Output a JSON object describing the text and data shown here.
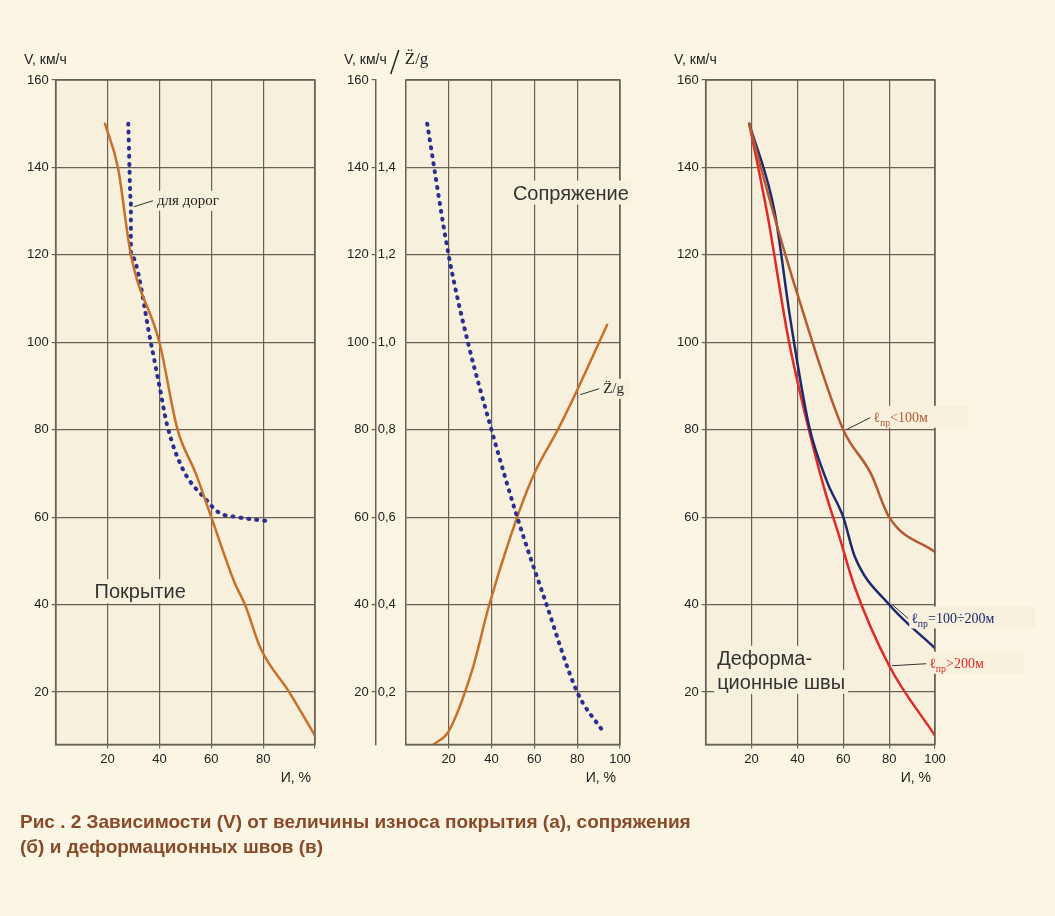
{
  "chart_data": [
    {
      "type": "line",
      "xlabel": "И, %",
      "ylabel": "V, км/ч",
      "xlim": [
        0,
        100
      ],
      "ylim": [
        8,
        160
      ],
      "xticks": [
        20,
        40,
        60,
        80,
        {
          "value": 100,
          "label": null
        }
      ],
      "yticks": [
        20,
        40,
        60,
        80,
        100,
        120,
        140,
        160
      ],
      "grid": true,
      "annotations": [
        {
          "text": "для дорог",
          "x": 29,
          "y": 131
        },
        "Покрытие"
      ],
      "series": [
        {
          "color": "#c8702a",
          "line_style": "solid",
          "x": [
            19,
            24,
            29,
            40,
            47,
            54,
            60,
            69,
            73,
            79,
            90,
            100
          ],
          "values": [
            150,
            140,
            120,
            100,
            80,
            70,
            60,
            45,
            40,
            30,
            20,
            10
          ]
        },
        {
          "color": "#2b2f8f",
          "line_style": "dotted",
          "x": [
            28,
            29,
            29,
            37,
            40,
            43,
            49,
            58,
            63,
            70,
            83
          ],
          "values": [
            150,
            132,
            120,
            99,
            90,
            81,
            71,
            64,
            61,
            60,
            59
          ]
        }
      ]
    },
    {
      "type": "line",
      "xlabel": "И, %",
      "ylabel": "V, км/ч",
      "y2label": "Z̈/g",
      "xlim": [
        0,
        100
      ],
      "ylim": [
        8,
        160
      ],
      "y2lim": [
        0.08,
        1.6
      ],
      "xticks": [
        20,
        40,
        60,
        80,
        100
      ],
      "yticks": [
        20,
        40,
        60,
        80,
        100,
        120,
        140,
        160
      ],
      "y2ticks": [
        {
          "value": 0.2,
          "label": "0,2"
        },
        {
          "value": 0.4,
          "label": "0,4"
        },
        {
          "value": 0.6,
          "label": "0,6"
        },
        {
          "value": 0.8,
          "label": "0,8"
        },
        {
          "value": 1.0,
          "label": "1,0"
        },
        {
          "value": 1.2,
          "label": "1,2"
        },
        {
          "value": 1.4,
          "label": "1,4"
        }
      ],
      "grid": true,
      "annotations": [
        {
          "text": "Z̈/g",
          "x": 80,
          "y": 88
        },
        "Сопряжение"
      ],
      "series": [
        {
          "color": "#2b2f8f",
          "line_style": "dotted",
          "x": [
            10,
            20,
            29,
            40,
            52,
            65,
            80,
            92
          ],
          "values": [
            150,
            120,
            100,
            80,
            60,
            41,
            20,
            11
          ]
        },
        {
          "color": "#c8702a",
          "line_style": "solid",
          "axis": "y2",
          "x": [
            13,
            20,
            31,
            39,
            52,
            60,
            71,
            79,
            94
          ],
          "values": [
            0.08,
            0.11,
            0.25,
            0.4,
            0.6,
            0.7,
            0.8,
            0.88,
            1.04
          ]
        }
      ]
    },
    {
      "type": "line",
      "xlabel": "И, %",
      "ylabel": "V, км/ч",
      "xlim": [
        0,
        100
      ],
      "ylim": [
        8,
        160
      ],
      "xticks": [
        20,
        40,
        60,
        80,
        100
      ],
      "yticks": [
        20,
        40,
        60,
        80,
        100,
        120,
        140,
        160
      ],
      "grid": true,
      "annotations": [
        "Деформа-\nционные швы"
      ],
      "series": [
        {
          "name": "ℓ$_{пр}$<100м",
          "color": "#b35a32",
          "line_style": "solid",
          "x": [
            19,
            23,
            32,
            40,
            60,
            72,
            80,
            100
          ],
          "values": [
            150,
            142,
            125,
            111,
            80,
            70,
            60,
            52
          ]
        },
        {
          "name": "ℓ$_{пр}$=100÷200м",
          "color": "#1e2a6e",
          "line_style": "solid",
          "x": [
            19,
            30,
            37,
            45,
            53,
            60,
            65,
            80,
            100
          ],
          "values": [
            150,
            130,
            105,
            81,
            68,
            60,
            51,
            40,
            30
          ]
        },
        {
          "name": "ℓ$_{пр}$>200м",
          "color": "#e02a2a",
          "line_style": "solid",
          "x": [
            19,
            27,
            36,
            45,
            52,
            58,
            65,
            80,
            100
          ],
          "values": [
            150,
            129,
            101,
            80,
            66,
            56,
            44,
            26,
            10
          ]
        }
      ]
    },
    {
      "type": "other",
      "title": "Рис . 2 Зависимости (V) от величины износа покрытия (а), сопряжения (б) и деформационных швов (в)"
    }
  ]
}
